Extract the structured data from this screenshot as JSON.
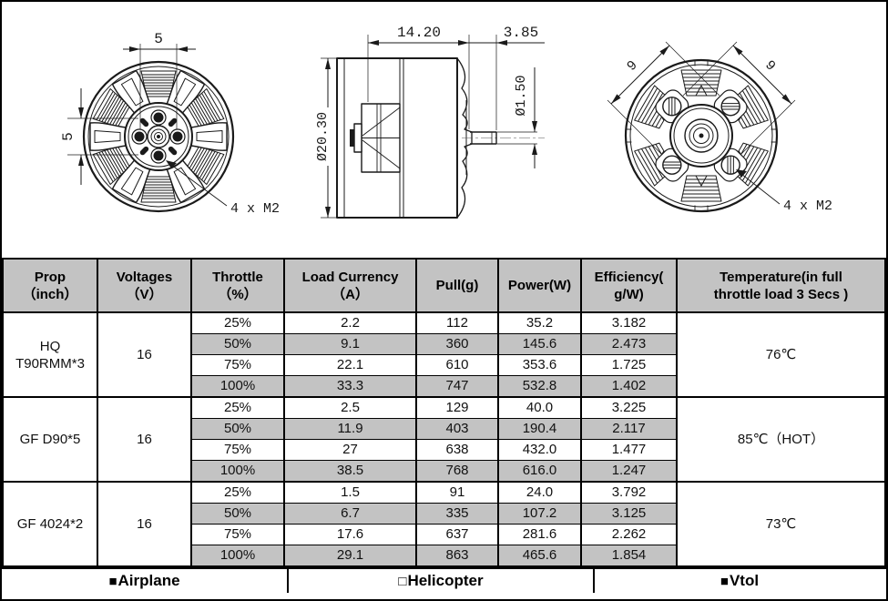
{
  "colors": {
    "shaded_row": "#c3c3c3",
    "header_bg": "#c3c3c3",
    "border": "#000000",
    "line": "#1a1a1a"
  },
  "drawings": {
    "front": {
      "dim_top": "5",
      "dim_left": "5",
      "screws": "4 x M2"
    },
    "side": {
      "dim_length": "14.20",
      "dim_shaft_len": "3.85",
      "dim_dia": "Ø20.30",
      "dim_shaft_dia": "Ø1.50"
    },
    "rear": {
      "dim_left": "9",
      "dim_right": "9",
      "screws": "4 x M2"
    }
  },
  "table": {
    "headers": [
      "Prop\n（inch）",
      "Voltages\n（V）",
      "Throttle\n（%）",
      "Load Currency\n（A）",
      "Pull(g)",
      "Power(W)",
      "Efficiency(\ng/W)",
      "Temperature(in full\nthrottle load 3 Secs )"
    ],
    "groups": [
      {
        "prop": "HQ\nT90RMM*3",
        "voltage": "16",
        "temp": "76℃",
        "rows": [
          [
            "25%",
            "2.2",
            "112",
            "35.2",
            "3.182"
          ],
          [
            "50%",
            "9.1",
            "360",
            "145.6",
            "2.473"
          ],
          [
            "75%",
            "22.1",
            "610",
            "353.6",
            "1.725"
          ],
          [
            "100%",
            "33.3",
            "747",
            "532.8",
            "1.402"
          ]
        ]
      },
      {
        "prop": "GF D90*5",
        "voltage": "16",
        "temp": "85℃（HOT）",
        "rows": [
          [
            "25%",
            "2.5",
            "129",
            "40.0",
            "3.225"
          ],
          [
            "50%",
            "11.9",
            "403",
            "190.4",
            "2.117"
          ],
          [
            "75%",
            "27",
            "638",
            "432.0",
            "1.477"
          ],
          [
            "100%",
            "38.5",
            "768",
            "616.0",
            "1.247"
          ]
        ]
      },
      {
        "prop": "GF 4024*2",
        "voltage": "16",
        "temp": "73℃",
        "rows": [
          [
            "25%",
            "1.5",
            "91",
            "24.0",
            "3.792"
          ],
          [
            "50%",
            "6.7",
            "335",
            "107.2",
            "3.125"
          ],
          [
            "75%",
            "17.6",
            "637",
            "281.6",
            "2.262"
          ],
          [
            "100%",
            "29.1",
            "863",
            "465.6",
            "1.854"
          ]
        ]
      }
    ],
    "footer": [
      {
        "bullet": "■",
        "label": "Airplane"
      },
      {
        "bullet": "□",
        "label": "Helicopter"
      },
      {
        "bullet": "■",
        "label": "Vtol"
      }
    ]
  }
}
